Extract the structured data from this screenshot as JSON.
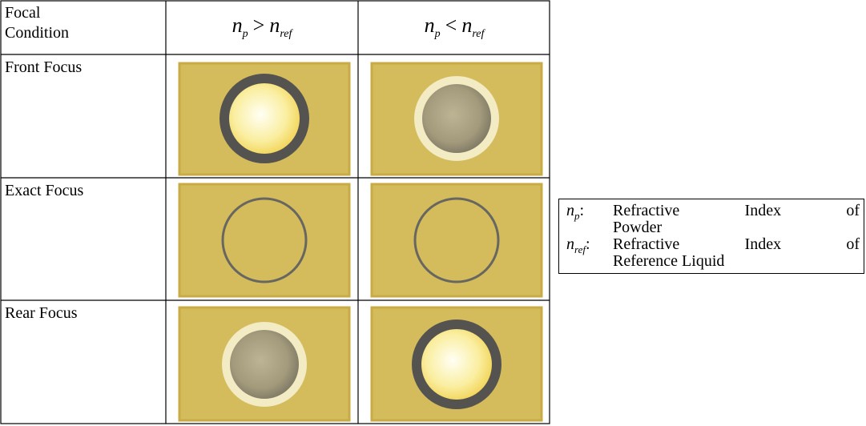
{
  "table": {
    "corner": [
      "Focal",
      "Condition"
    ],
    "columns": [
      {
        "left": {
          "base": "n",
          "sub": "p"
        },
        "relation": ">",
        "right": {
          "base": "n",
          "sub": "ref"
        }
      },
      {
        "left": {
          "base": "n",
          "sub": "p"
        },
        "relation": "<",
        "right": {
          "base": "n",
          "sub": "ref"
        }
      }
    ],
    "rows": [
      "Front Focus",
      "Exact Focus",
      "Rear Focus"
    ]
  },
  "legend": [
    {
      "symbol": {
        "base": "n",
        "sub": "p"
      },
      "separator": ":",
      "lines": [
        "Refractive Index of",
        "Powder"
      ]
    },
    {
      "symbol": {
        "base": "n",
        "sub": "ref"
      },
      "separator": ":",
      "lines": [
        "Refractive Index of",
        "Reference Liquid"
      ]
    }
  ]
}
